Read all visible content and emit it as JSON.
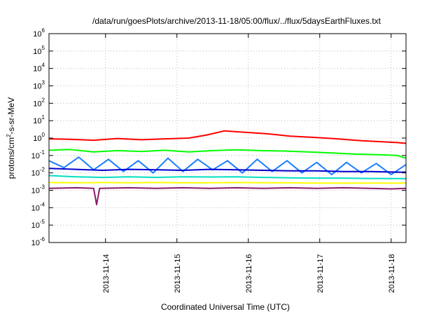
{
  "chart_data": {
    "type": "line",
    "title": "/data/run/goesPlots/archive/2013-11-18/05:00/flux/../flux/5daysEarthFluxes.txt",
    "xlabel": "Coordinated Universal Time (UTC)",
    "ylabel_base": "protons/cm",
    "ylabel_sup": "2",
    "ylabel_rest": "-s-sr-MeV",
    "y_scale": "log",
    "ylim": [
      1e-06,
      1000000.0
    ],
    "y_ticks": [
      {
        "exp": "-6",
        "value": 1e-06
      },
      {
        "exp": "-5",
        "value": 1e-05
      },
      {
        "exp": "-4",
        "value": 0.0001
      },
      {
        "exp": "-3",
        "value": 0.001
      },
      {
        "exp": "-2",
        "value": 0.01
      },
      {
        "exp": "-1",
        "value": 0.1
      },
      {
        "exp": "0",
        "value": 1
      },
      {
        "exp": "1",
        "value": 10
      },
      {
        "exp": "2",
        "value": 100
      },
      {
        "exp": "3",
        "value": 1000
      },
      {
        "exp": "4",
        "value": 10000
      },
      {
        "exp": "5",
        "value": 100000
      },
      {
        "exp": "6",
        "value": 1000000
      }
    ],
    "y_tick_base": "10",
    "xlim": [
      "2013-11-13T05:00",
      "2013-11-18T05:00"
    ],
    "x_ticks": [
      "2013-11-14",
      "2013-11-15",
      "2013-11-16",
      "2013-11-17",
      "2013-11-18"
    ],
    "grid": true,
    "series": [
      {
        "color": "#ff0000",
        "points": [
          [
            "2013-11-13T05:00",
            0.9
          ],
          [
            "2013-11-13T12:00",
            0.85
          ],
          [
            "2013-11-13T20:00",
            0.75
          ],
          [
            "2013-11-14T04:00",
            0.95
          ],
          [
            "2013-11-14T12:00",
            0.8
          ],
          [
            "2013-11-14T20:00",
            0.9
          ],
          [
            "2013-11-15T04:00",
            1.0
          ],
          [
            "2013-11-15T10:00",
            1.5
          ],
          [
            "2013-11-15T16:00",
            2.6
          ],
          [
            "2013-11-15T22:00",
            2.2
          ],
          [
            "2013-11-16T06:00",
            1.8
          ],
          [
            "2013-11-16T14:00",
            1.3
          ],
          [
            "2013-11-16T22:00",
            1.1
          ],
          [
            "2013-11-17T06:00",
            0.9
          ],
          [
            "2013-11-17T14:00",
            0.7
          ],
          [
            "2013-11-17T22:00",
            0.6
          ],
          [
            "2013-11-18T02:00",
            0.55
          ],
          [
            "2013-11-18T05:00",
            0.5
          ]
        ]
      },
      {
        "color": "#00ff00",
        "points": [
          [
            "2013-11-13T05:00",
            0.2
          ],
          [
            "2013-11-13T12:00",
            0.22
          ],
          [
            "2013-11-13T20:00",
            0.16
          ],
          [
            "2013-11-14T04:00",
            0.19
          ],
          [
            "2013-11-14T12:00",
            0.17
          ],
          [
            "2013-11-14T20:00",
            0.2
          ],
          [
            "2013-11-15T04:00",
            0.16
          ],
          [
            "2013-11-15T12:00",
            0.19
          ],
          [
            "2013-11-15T20:00",
            0.21
          ],
          [
            "2013-11-16T04:00",
            0.19
          ],
          [
            "2013-11-16T12:00",
            0.18
          ],
          [
            "2013-11-16T20:00",
            0.16
          ],
          [
            "2013-11-17T04:00",
            0.14
          ],
          [
            "2013-11-17T12:00",
            0.12
          ],
          [
            "2013-11-17T20:00",
            0.11
          ],
          [
            "2013-11-18T02:00",
            0.1
          ],
          [
            "2013-11-18T05:00",
            0.07
          ]
        ]
      },
      {
        "color": "#1a7fff",
        "points": [
          [
            "2013-11-13T05:00",
            0.05
          ],
          [
            "2013-11-13T10:00",
            0.02
          ],
          [
            "2013-11-13T15:00",
            0.08
          ],
          [
            "2013-11-13T20:00",
            0.015
          ],
          [
            "2013-11-14T01:00",
            0.06
          ],
          [
            "2013-11-14T06:00",
            0.012
          ],
          [
            "2013-11-14T11:00",
            0.05
          ],
          [
            "2013-11-14T16:00",
            0.01
          ],
          [
            "2013-11-14T21:00",
            0.07
          ],
          [
            "2013-11-15T02:00",
            0.012
          ],
          [
            "2013-11-15T07:00",
            0.06
          ],
          [
            "2013-11-15T12:00",
            0.015
          ],
          [
            "2013-11-15T17:00",
            0.05
          ],
          [
            "2013-11-15T22:00",
            0.01
          ],
          [
            "2013-11-16T03:00",
            0.06
          ],
          [
            "2013-11-16T08:00",
            0.012
          ],
          [
            "2013-11-16T13:00",
            0.05
          ],
          [
            "2013-11-16T18:00",
            0.01
          ],
          [
            "2013-11-16T23:00",
            0.04
          ],
          [
            "2013-11-17T04:00",
            0.008
          ],
          [
            "2013-11-17T09:00",
            0.04
          ],
          [
            "2013-11-17T14:00",
            0.01
          ],
          [
            "2013-11-17T19:00",
            0.035
          ],
          [
            "2013-11-18T00:00",
            0.008
          ],
          [
            "2013-11-18T05:00",
            0.03
          ]
        ]
      },
      {
        "color": "#0000d0",
        "points": [
          [
            "2013-11-13T05:00",
            0.018
          ],
          [
            "2013-11-13T14:00",
            0.016
          ],
          [
            "2013-11-13T23:00",
            0.014
          ],
          [
            "2013-11-14T08:00",
            0.016
          ],
          [
            "2013-11-14T17:00",
            0.015
          ],
          [
            "2013-11-15T02:00",
            0.014
          ],
          [
            "2013-11-15T11:00",
            0.016
          ],
          [
            "2013-11-15T20:00",
            0.015
          ],
          [
            "2013-11-16T05:00",
            0.014
          ],
          [
            "2013-11-16T14:00",
            0.013
          ],
          [
            "2013-11-16T23:00",
            0.013
          ],
          [
            "2013-11-17T08:00",
            0.012
          ],
          [
            "2013-11-17T17:00",
            0.012
          ],
          [
            "2013-11-18T02:00",
            0.011
          ],
          [
            "2013-11-18T05:00",
            0.011
          ]
        ]
      },
      {
        "color": "#00e0c0",
        "points": [
          [
            "2013-11-13T05:00",
            0.007
          ],
          [
            "2013-11-13T14:00",
            0.006
          ],
          [
            "2013-11-13T23:00",
            0.0055
          ],
          [
            "2013-11-14T08:00",
            0.006
          ],
          [
            "2013-11-14T17:00",
            0.0055
          ],
          [
            "2013-11-15T02:00",
            0.006
          ],
          [
            "2013-11-15T11:00",
            0.0058
          ],
          [
            "2013-11-15T20:00",
            0.006
          ],
          [
            "2013-11-16T05:00",
            0.0055
          ],
          [
            "2013-11-16T14:00",
            0.0052
          ],
          [
            "2013-11-16T23:00",
            0.005
          ],
          [
            "2013-11-17T08:00",
            0.005
          ],
          [
            "2013-11-17T17:00",
            0.0048
          ],
          [
            "2013-11-18T02:00",
            0.0047
          ],
          [
            "2013-11-18T05:00",
            0.0046
          ]
        ]
      },
      {
        "color": "#ffff00",
        "points": [
          [
            "2013-11-13T05:00",
            0.0028
          ],
          [
            "2013-11-13T14:00",
            0.0027
          ],
          [
            "2013-11-13T23:00",
            0.0028
          ],
          [
            "2013-11-14T08:00",
            0.0027
          ],
          [
            "2013-11-14T17:00",
            0.0028
          ],
          [
            "2013-11-15T02:00",
            0.0027
          ],
          [
            "2013-11-15T11:00",
            0.0027
          ],
          [
            "2013-11-15T20:00",
            0.0028
          ],
          [
            "2013-11-16T05:00",
            0.0027
          ],
          [
            "2013-11-16T14:00",
            0.0027
          ],
          [
            "2013-11-16T23:00",
            0.0026
          ],
          [
            "2013-11-17T08:00",
            0.0026
          ],
          [
            "2013-11-17T17:00",
            0.0026
          ],
          [
            "2013-11-18T02:00",
            0.0026
          ],
          [
            "2013-11-18T05:00",
            0.0026
          ]
        ]
      },
      {
        "color": "#8b1a6b",
        "points": [
          [
            "2013-11-13T05:00",
            0.0013
          ],
          [
            "2013-11-13T14:00",
            0.0014
          ],
          [
            "2013-11-13T20:00",
            0.0013
          ],
          [
            "2013-11-13T21:00",
            0.00015
          ],
          [
            "2013-11-13T22:00",
            0.0013
          ],
          [
            "2013-11-14T08:00",
            0.0014
          ],
          [
            "2013-11-14T17:00",
            0.0013
          ],
          [
            "2013-11-15T02:00",
            0.0014
          ],
          [
            "2013-11-15T11:00",
            0.0013
          ],
          [
            "2013-11-15T20:00",
            0.0014
          ],
          [
            "2013-11-16T05:00",
            0.0013
          ],
          [
            "2013-11-16T14:00",
            0.0014
          ],
          [
            "2013-11-16T23:00",
            0.0013
          ],
          [
            "2013-11-17T08:00",
            0.0014
          ],
          [
            "2013-11-17T17:00",
            0.0013
          ],
          [
            "2013-11-18T00:00",
            0.0012
          ],
          [
            "2013-11-18T05:00",
            0.0013
          ]
        ]
      }
    ]
  }
}
